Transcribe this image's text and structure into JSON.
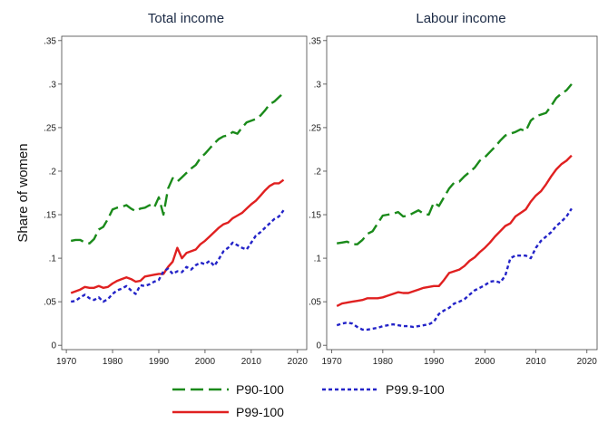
{
  "chart_data": {
    "type": "line",
    "ylabel": "Share of women",
    "x_ticks": [
      1970,
      1980,
      1990,
      2000,
      2010,
      2020
    ],
    "y_ticks": [
      {
        "value": 0,
        "label": "0"
      },
      {
        "value": 0.05,
        "label": ".05"
      },
      {
        "value": 0.1,
        "label": ".1"
      },
      {
        "value": 0.15,
        "label": ".15"
      },
      {
        "value": 0.2,
        "label": ".2"
      },
      {
        "value": 0.25,
        "label": ".25"
      },
      {
        "value": 0.3,
        "label": ".3"
      },
      {
        "value": 0.35,
        "label": ".35"
      }
    ],
    "xlim": [
      1969,
      2022
    ],
    "ylim": [
      -0.005,
      0.355
    ],
    "grid": false,
    "legend_position": "bottom",
    "legend": [
      {
        "name": "P90-100",
        "color": "#1a8a1a",
        "dash": "long-dash"
      },
      {
        "name": "P99.9-100",
        "color": "#2323c8",
        "dash": "short-dash"
      },
      {
        "name": "P99-100",
        "color": "#e02020",
        "dash": "solid"
      }
    ],
    "panels": [
      {
        "title": "Total income",
        "series": [
          {
            "name": "P90-100",
            "x": [
              1971,
              1972,
              1973,
              1974,
              1975,
              1976,
              1977,
              1978,
              1979,
              1980,
              1981,
              1982,
              1983,
              1984,
              1985,
              1986,
              1987,
              1988,
              1989,
              1990,
              1991,
              1992,
              1993,
              1994,
              1995,
              1996,
              1997,
              1998,
              1999,
              2000,
              2001,
              2002,
              2003,
              2004,
              2005,
              2006,
              2007,
              2008,
              2009,
              2010,
              2011,
              2012,
              2013,
              2014,
              2015,
              2016,
              2017
            ],
            "y": [
              0.12,
              0.121,
              0.121,
              0.118,
              0.117,
              0.122,
              0.133,
              0.136,
              0.145,
              0.156,
              0.158,
              0.159,
              0.161,
              0.157,
              0.154,
              0.157,
              0.158,
              0.161,
              0.158,
              0.17,
              0.15,
              0.18,
              0.192,
              0.188,
              0.193,
              0.198,
              0.203,
              0.207,
              0.215,
              0.22,
              0.226,
              0.232,
              0.237,
              0.24,
              0.241,
              0.245,
              0.243,
              0.25,
              0.256,
              0.258,
              0.26,
              0.264,
              0.27,
              0.277,
              0.28,
              0.285,
              0.29
            ]
          },
          {
            "name": "P99-100",
            "x": [
              1971,
              1972,
              1973,
              1974,
              1975,
              1976,
              1977,
              1978,
              1979,
              1980,
              1981,
              1982,
              1983,
              1984,
              1985,
              1986,
              1987,
              1988,
              1989,
              1990,
              1991,
              1992,
              1993,
              1994,
              1995,
              1996,
              1997,
              1998,
              1999,
              2000,
              2001,
              2002,
              2003,
              2004,
              2005,
              2006,
              2007,
              2008,
              2009,
              2010,
              2011,
              2012,
              2013,
              2014,
              2015,
              2016,
              2017
            ],
            "y": [
              0.06,
              0.062,
              0.064,
              0.067,
              0.066,
              0.066,
              0.068,
              0.066,
              0.067,
              0.071,
              0.074,
              0.076,
              0.078,
              0.076,
              0.073,
              0.074,
              0.079,
              0.08,
              0.081,
              0.082,
              0.082,
              0.09,
              0.096,
              0.112,
              0.1,
              0.106,
              0.108,
              0.11,
              0.116,
              0.12,
              0.125,
              0.13,
              0.135,
              0.139,
              0.141,
              0.146,
              0.149,
              0.152,
              0.157,
              0.162,
              0.166,
              0.172,
              0.178,
              0.183,
              0.186,
              0.186,
              0.19
            ]
          },
          {
            "name": "P99.9-100",
            "x": [
              1971,
              1972,
              1973,
              1974,
              1975,
              1976,
              1977,
              1978,
              1979,
              1980,
              1981,
              1982,
              1983,
              1984,
              1985,
              1986,
              1987,
              1988,
              1989,
              1990,
              1991,
              1992,
              1993,
              1994,
              1995,
              1996,
              1997,
              1998,
              1999,
              2000,
              2001,
              2002,
              2003,
              2004,
              2005,
              2006,
              2007,
              2008,
              2009,
              2010,
              2011,
              2012,
              2013,
              2014,
              2015,
              2016,
              2017
            ],
            "y": [
              0.05,
              0.051,
              0.055,
              0.058,
              0.054,
              0.052,
              0.055,
              0.05,
              0.053,
              0.059,
              0.063,
              0.065,
              0.068,
              0.063,
              0.059,
              0.069,
              0.068,
              0.07,
              0.073,
              0.075,
              0.085,
              0.088,
              0.082,
              0.085,
              0.084,
              0.09,
              0.087,
              0.092,
              0.095,
              0.093,
              0.097,
              0.091,
              0.099,
              0.108,
              0.112,
              0.118,
              0.115,
              0.112,
              0.11,
              0.118,
              0.126,
              0.13,
              0.135,
              0.14,
              0.145,
              0.148,
              0.155
            ]
          }
        ]
      },
      {
        "title": "Labour income",
        "series": [
          {
            "name": "P90-100",
            "x": [
              1971,
              1972,
              1973,
              1974,
              1975,
              1976,
              1977,
              1978,
              1979,
              1980,
              1981,
              1982,
              1983,
              1984,
              1985,
              1986,
              1987,
              1988,
              1989,
              1990,
              1991,
              1992,
              1993,
              1994,
              1995,
              1996,
              1997,
              1998,
              1999,
              2000,
              2001,
              2002,
              2003,
              2004,
              2005,
              2006,
              2007,
              2008,
              2009,
              2010,
              2011,
              2012,
              2013,
              2014,
              2015,
              2016,
              2017
            ],
            "y": [
              0.117,
              0.118,
              0.119,
              0.116,
              0.116,
              0.121,
              0.128,
              0.131,
              0.14,
              0.149,
              0.15,
              0.151,
              0.153,
              0.148,
              0.149,
              0.152,
              0.155,
              0.151,
              0.15,
              0.164,
              0.16,
              0.17,
              0.18,
              0.187,
              0.188,
              0.194,
              0.199,
              0.204,
              0.212,
              0.216,
              0.222,
              0.228,
              0.235,
              0.241,
              0.243,
              0.245,
              0.248,
              0.246,
              0.258,
              0.263,
              0.265,
              0.267,
              0.275,
              0.284,
              0.289,
              0.293,
              0.3
            ]
          },
          {
            "name": "P99-100",
            "x": [
              1971,
              1972,
              1973,
              1974,
              1975,
              1976,
              1977,
              1978,
              1979,
              1980,
              1981,
              1982,
              1983,
              1984,
              1985,
              1986,
              1987,
              1988,
              1989,
              1990,
              1991,
              1992,
              1993,
              1994,
              1995,
              1996,
              1997,
              1998,
              1999,
              2000,
              2001,
              2002,
              2003,
              2004,
              2005,
              2006,
              2007,
              2008,
              2009,
              2010,
              2011,
              2012,
              2013,
              2014,
              2015,
              2016,
              2017
            ],
            "y": [
              0.045,
              0.048,
              0.049,
              0.05,
              0.051,
              0.052,
              0.054,
              0.054,
              0.054,
              0.055,
              0.057,
              0.059,
              0.061,
              0.06,
              0.06,
              0.062,
              0.064,
              0.066,
              0.067,
              0.068,
              0.068,
              0.075,
              0.083,
              0.085,
              0.087,
              0.091,
              0.097,
              0.101,
              0.107,
              0.112,
              0.118,
              0.125,
              0.131,
              0.137,
              0.14,
              0.148,
              0.152,
              0.156,
              0.165,
              0.172,
              0.177,
              0.185,
              0.194,
              0.202,
              0.208,
              0.212,
              0.218
            ]
          },
          {
            "name": "P99.9-100",
            "x": [
              1971,
              1972,
              1973,
              1974,
              1975,
              1976,
              1977,
              1978,
              1979,
              1980,
              1981,
              1982,
              1983,
              1984,
              1985,
              1986,
              1987,
              1988,
              1989,
              1990,
              1991,
              1992,
              1993,
              1994,
              1995,
              1996,
              1997,
              1998,
              1999,
              2000,
              2001,
              2002,
              2003,
              2004,
              2005,
              2006,
              2007,
              2008,
              2009,
              2010,
              2011,
              2012,
              2013,
              2014,
              2015,
              2016,
              2017
            ],
            "y": [
              0.023,
              0.025,
              0.026,
              0.025,
              0.021,
              0.018,
              0.018,
              0.019,
              0.02,
              0.022,
              0.023,
              0.024,
              0.023,
              0.022,
              0.022,
              0.021,
              0.022,
              0.023,
              0.024,
              0.027,
              0.036,
              0.04,
              0.043,
              0.048,
              0.05,
              0.053,
              0.058,
              0.063,
              0.066,
              0.069,
              0.073,
              0.074,
              0.072,
              0.08,
              0.1,
              0.103,
              0.103,
              0.103,
              0.1,
              0.112,
              0.12,
              0.125,
              0.13,
              0.137,
              0.142,
              0.148,
              0.157
            ]
          }
        ]
      }
    ]
  }
}
